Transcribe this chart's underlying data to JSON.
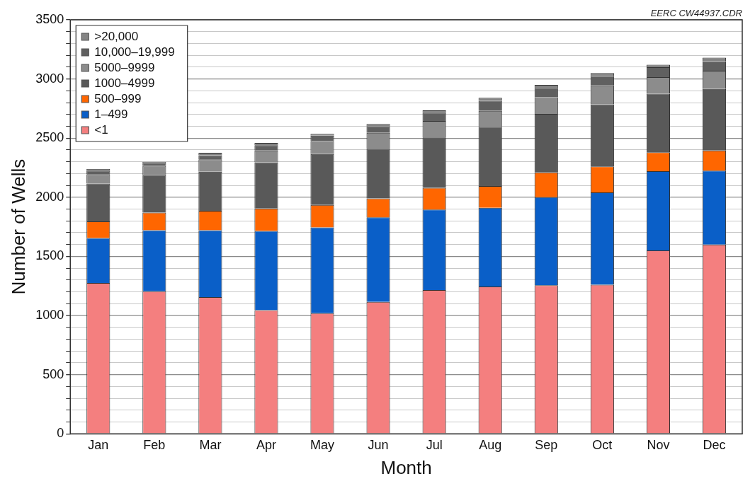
{
  "chart_data": {
    "type": "bar",
    "stacked": true,
    "xlabel": "Month",
    "ylabel": "Number of Wells",
    "annotations": [
      "EERC CW44937.CDR"
    ],
    "categories": [
      "Jan",
      "Feb",
      "Mar",
      "Apr",
      "May",
      "Jun",
      "Jul",
      "Aug",
      "Sep",
      "Oct",
      "Nov",
      "Dec"
    ],
    "series": [
      {
        "name": "<1",
        "color": "#f47f7f",
        "values": [
          1275,
          1205,
          1155,
          1045,
          1020,
          1115,
          1215,
          1245,
          1255,
          1260,
          1550,
          1600
        ]
      },
      {
        "name": "1–499",
        "color": "#0a5fc8",
        "values": [
          380,
          515,
          565,
          670,
          725,
          715,
          680,
          665,
          745,
          780,
          670,
          625
        ]
      },
      {
        "name": "500–999",
        "color": "#ff6600",
        "values": [
          140,
          150,
          165,
          190,
          190,
          160,
          185,
          185,
          210,
          220,
          160,
          170
        ]
      },
      {
        "name": "1000–4999",
        "color": "#595959",
        "values": [
          320,
          315,
          330,
          390,
          430,
          420,
          425,
          500,
          495,
          525,
          495,
          520
        ]
      },
      {
        "name": "5000–9999",
        "color": "#8c8c8c",
        "values": [
          80,
          80,
          105,
          100,
          110,
          135,
          140,
          135,
          140,
          160,
          140,
          155
        ]
      },
      {
        "name": "10,000–19,999",
        "color": "#606060",
        "values": [
          30,
          25,
          35,
          45,
          45,
          55,
          70,
          85,
          80,
          80,
          85,
          80
        ]
      },
      {
        "name": ">20,000",
        "color": "#848484",
        "values": [
          15,
          10,
          20,
          20,
          15,
          20,
          20,
          25,
          25,
          25,
          20,
          30
        ]
      }
    ],
    "ylim": [
      0,
      3500
    ],
    "yticks": [
      0,
      {
        "value": 100,
        "label": null
      },
      {
        "value": 200,
        "label": null
      },
      {
        "value": 300,
        "label": null
      },
      {
        "value": 400,
        "label": null
      },
      500,
      {
        "value": 600,
        "label": null
      },
      {
        "value": 700,
        "label": null
      },
      {
        "value": 800,
        "label": null
      },
      {
        "value": 900,
        "label": null
      },
      1000,
      {
        "value": 1100,
        "label": null
      },
      {
        "value": 1200,
        "label": null
      },
      {
        "value": 1300,
        "label": null
      },
      {
        "value": 1400,
        "label": null
      },
      1500,
      {
        "value": 1600,
        "label": null
      },
      {
        "value": 1700,
        "label": null
      },
      {
        "value": 1800,
        "label": null
      },
      {
        "value": 1900,
        "label": null
      },
      2000,
      {
        "value": 2100,
        "label": null
      },
      {
        "value": 2200,
        "label": null
      },
      {
        "value": 2300,
        "label": null
      },
      {
        "value": 2400,
        "label": null
      },
      2500,
      {
        "value": 2600,
        "label": null
      },
      {
        "value": 2700,
        "label": null
      },
      {
        "value": 2800,
        "label": null
      },
      {
        "value": 2900,
        "label": null
      },
      3000,
      {
        "value": 3100,
        "label": null
      },
      {
        "value": 3200,
        "label": null
      },
      {
        "value": 3300,
        "label": null
      },
      {
        "value": 3400,
        "label": null
      },
      3500
    ],
    "grid": "y",
    "legend": "top left"
  }
}
